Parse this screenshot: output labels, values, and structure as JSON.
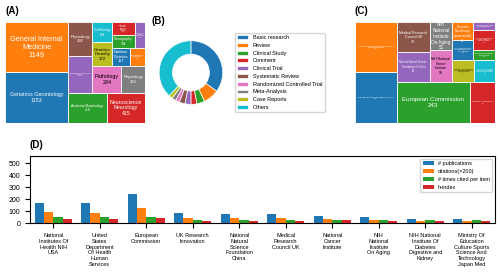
{
  "chart_data": [
    {
      "type": "treemap",
      "title": "(A)",
      "categories": [
        "Geriatrics Gerontology\n1153",
        "General Internal\nMedicine\n1149",
        "Anatomy Morphology\n418",
        "Neuroscience\nNeurology\n415",
        "Biochemistry Molecular\nBiology\n329",
        "Physiology\n292",
        "Pathology\n284",
        "Physiology\n234",
        "Genetics\nHeredity\n172",
        "Cell Biology\n144",
        "Nutrition\nDietetics\n117",
        "Pharmacology\nPharmacy\n106",
        "Demography\n104",
        "Radiology\nNuclear\nMedicine\nMedical\nImaging\n104",
        "Substance\nAbuse\nHospitalism\n97"
      ],
      "values": [
        1153,
        1149,
        418,
        415,
        329,
        292,
        284,
        234,
        172,
        144,
        117,
        106,
        104,
        104,
        97
      ]
    },
    {
      "type": "donut",
      "title": "(B)",
      "categories": [
        "Basic research",
        "Review",
        "Clinical Study",
        "Comment",
        "Clinical Trial",
        "Systematic Review",
        "Randomized Controlled Trial",
        "Meta-Analysis",
        "Case Reports",
        "Others"
      ],
      "values": [
        35,
        8,
        4,
        3,
        3,
        3,
        2,
        2,
        2,
        38
      ],
      "legend": "center left"
    },
    {
      "type": "treemap",
      "title": "(C)",
      "categories": [
        "National Institutes Of Health: NIH USA\n172",
        "United States Department Of Health\nHuman Services\n170",
        "European Commission\n243",
        "UK Research & Innovation\n83",
        "National Natural Science\nFoundation Of China\n80",
        "Medical Research\nCouncil UK\n79",
        "NIH National\nCancer\nInstitute\n58",
        "NIH\nNational\nInstitute\nOn Aging\n51",
        "NIH National Institute Of\nArthritis Musculoskeletal\nSkin Diseases\n39",
        "Ministry Of Education\nCulture Sports Science\nAnd Technology Japan\n36",
        "NIH National Institute Of\nMusculoskeletal and\nSkin Diseases\n34",
        "DFG\nDeutsche\nForschungs\ngemeinschaft\n31",
        "German Research\nFoundation\n18",
        "NIH National Institute On\nDiabetes Digestive\nKidney Diseases\n34",
        "Canadian Institute Of\nHealth Research\n14"
      ],
      "values": [
        172,
        170,
        243,
        83,
        80,
        79,
        58,
        51,
        39,
        36,
        34,
        31,
        18,
        34,
        14
      ]
    },
    {
      "type": "bar",
      "title": "(D)",
      "categories": [
        "National\nInstitutes Of\nHealth NIH\nUSA",
        "United\nStates\nDepartment\nOf Health\nHuman\nServices",
        "European\nCommission",
        "UK Research\nInnovation",
        "National\nNatural\nScience\nFoundation\nChina",
        "Medical\nResearch\nCouncil UK",
        "National\nCancer\nInstitute",
        "NIH\nNational\nInstitute\nOn Aging",
        "NIH National\nInstitute Of\nDiabetes\nDigestive and\nKidney",
        "Ministry Of\nEducation\nCulture Sports\nScience And\nTechnology\nJapan Med"
      ],
      "series": [
        {
          "name": "# publications",
          "values": [
            172,
            170,
            243,
            83,
            80,
            79,
            58,
            51,
            34,
            36
          ]
        },
        {
          "name": "citations(×200)",
          "values": [
            95,
            88,
            130,
            45,
            42,
            40,
            35,
            28,
            20,
            18
          ]
        },
        {
          "name": "# times cited per item",
          "values": [
            55,
            52,
            54,
            27,
            26,
            25,
            30,
            27,
            29,
            25
          ]
        },
        {
          "name": "h-index",
          "values": [
            38,
            36,
            42,
            22,
            20,
            21,
            25,
            20,
            18,
            16
          ]
        }
      ],
      "ylim": [
        0,
        560
      ],
      "yticks": [
        0,
        100,
        200,
        300,
        400,
        500
      ],
      "legend": "upper right"
    }
  ]
}
